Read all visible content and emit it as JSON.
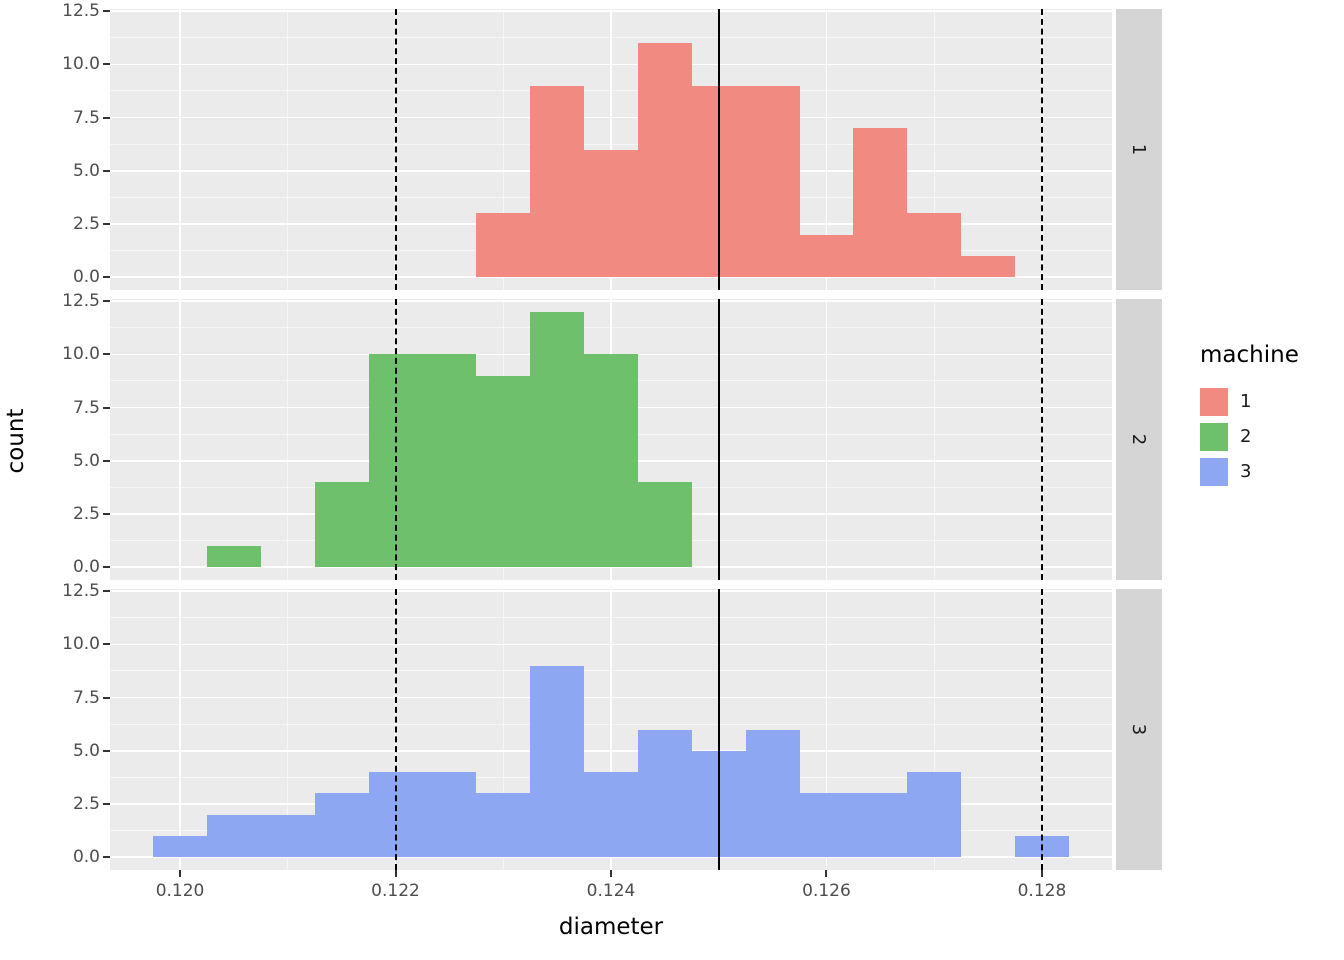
{
  "chart_data": {
    "type": "histogram",
    "title": "",
    "xlabel": "diameter",
    "ylabel": "count",
    "facet_variable": "machine",
    "xlim": [
      0.11935,
      0.12865
    ],
    "ylim": [
      -0.6,
      12.6
    ],
    "binwidth": 0.0005,
    "x_ticks": [
      0.12,
      0.122,
      0.124,
      0.126,
      0.128
    ],
    "x_tick_labels": [
      "0.120",
      "0.122",
      "0.124",
      "0.126",
      "0.128"
    ],
    "x_minor": [
      0.121,
      0.123,
      0.125,
      0.127
    ],
    "y_ticks": [
      0,
      2.5,
      5,
      7.5,
      10,
      12.5
    ],
    "y_tick_labels": [
      "0.0",
      "2.5",
      "5.0",
      "7.5",
      "10.0",
      "12.5"
    ],
    "y_minor": [
      1.25,
      3.75,
      6.25,
      8.75,
      11.25
    ],
    "reference_lines": {
      "solid": [
        0.125
      ],
      "dashed": [
        0.122,
        0.128
      ]
    },
    "facets": [
      {
        "label": "1",
        "machine": "1",
        "color": "#F18A80",
        "bin_start": 0.12275,
        "counts": [
          3,
          9,
          6,
          11,
          9,
          9,
          2,
          7,
          3,
          1
        ]
      },
      {
        "label": "2",
        "machine": "2",
        "color": "#6EC06D",
        "bin_start": 0.12025,
        "counts": [
          1,
          0,
          4,
          10,
          10,
          9,
          12,
          10,
          4
        ]
      },
      {
        "label": "3",
        "machine": "3",
        "color": "#8DA7F2",
        "bin_start": 0.11975,
        "counts": [
          1,
          2,
          2,
          3,
          4,
          4,
          3,
          9,
          4,
          6,
          5,
          6,
          3,
          3,
          4,
          0,
          1
        ]
      }
    ],
    "legend": {
      "title": "machine",
      "entries": [
        {
          "label": "1",
          "color": "#F18A80"
        },
        {
          "label": "2",
          "color": "#6EC06D"
        },
        {
          "label": "3",
          "color": "#8DA7F2"
        }
      ]
    }
  }
}
